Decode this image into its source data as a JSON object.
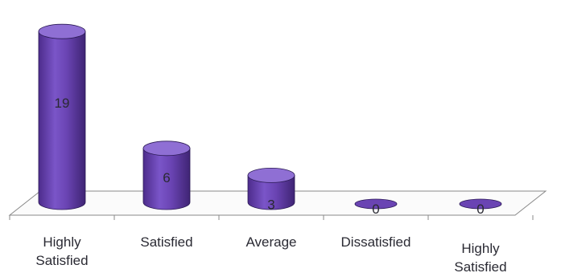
{
  "chart_data": {
    "type": "bar",
    "style": "3d-cylinder",
    "categories": [
      [
        "Highly",
        "Satisfied"
      ],
      [
        "Satisfied"
      ],
      [
        "Average"
      ],
      [
        "Dissatisfied"
      ],
      [
        "Highly",
        "Satisfied"
      ]
    ],
    "values": [
      19,
      6,
      3,
      0,
      0
    ],
    "data_labels": [
      "19",
      "6",
      "3",
      "0",
      "0"
    ],
    "ylim": [
      0,
      20
    ],
    "grid": false,
    "legend": "none",
    "colors": {
      "bar_front": "#6a44b3",
      "bar_top": "#8f6fd4",
      "bar_outline": "#2b1a55",
      "floor_line": "#8a8a8a",
      "label_text": "#2a2a33"
    }
  }
}
